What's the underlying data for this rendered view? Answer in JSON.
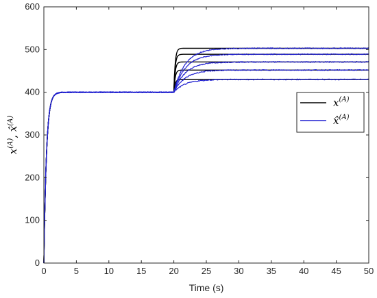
{
  "chart_data": {
    "type": "line",
    "xlabel": "Time (s)",
    "ylabel": "x^{(A)}, x̂^{(A)}",
    "xlim": [
      0,
      50
    ],
    "ylim": [
      0,
      600
    ],
    "x_ticks": [
      "0",
      "5",
      "10",
      "15",
      "20",
      "25",
      "30",
      "35",
      "40",
      "45",
      "50"
    ],
    "y_ticks": [
      "0",
      "100",
      "200",
      "300",
      "400",
      "500",
      "600"
    ],
    "grid": false,
    "legend_position": "right",
    "initial_rise": {
      "start_value": 0,
      "plateau_value": 400,
      "settled_by_time": 2
    },
    "step_time": 20,
    "targets": [
      430,
      452,
      471,
      489,
      503
    ],
    "series": [
      {
        "name": "x^{(A)}",
        "symbol": "x",
        "superscript": "(A)",
        "hat": false,
        "color": "#000000",
        "settle_time": 21
      },
      {
        "name": "x̂^{(A)}",
        "symbol": "x",
        "superscript": "(A)",
        "hat": true,
        "color": "#1f1fd0",
        "settle_time": 27
      }
    ]
  }
}
